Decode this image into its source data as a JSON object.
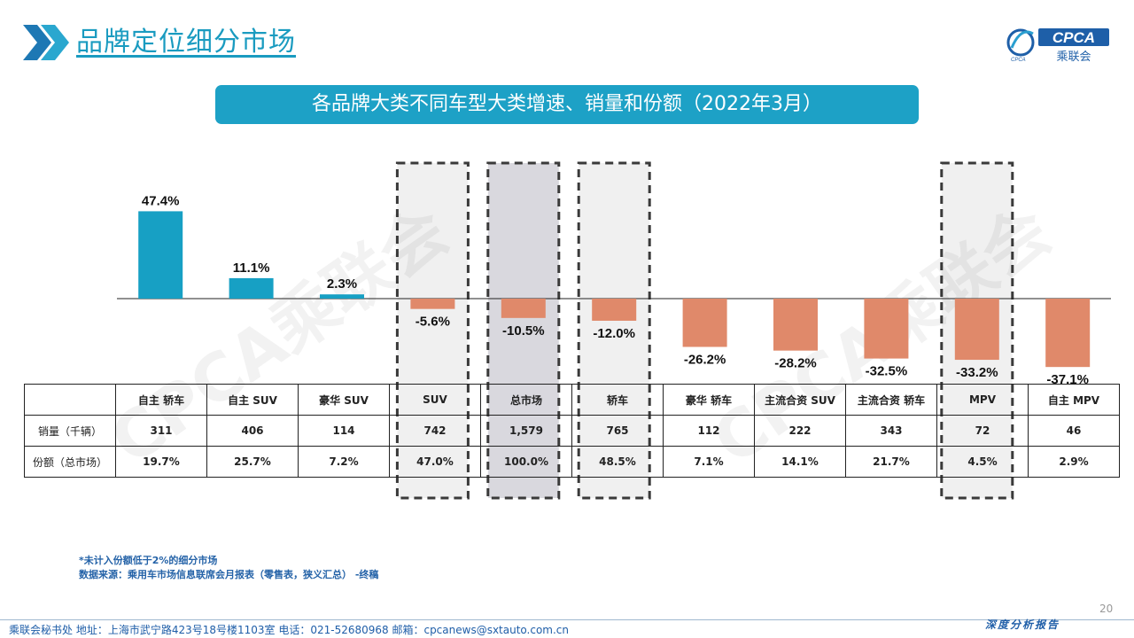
{
  "header": {
    "title": "品牌定位细分市场",
    "logo_text": "CPCA",
    "logo_subtext": "乘联会",
    "logo_mark_text": "CPCA"
  },
  "subtitle": "各品牌大类不同车型大类增速、销量和份额（2022年3月）",
  "chart_data": {
    "type": "bar",
    "categories": [
      "自主 轿车",
      "自主 SUV",
      "豪华 SUV",
      "SUV",
      "总市场",
      "轿车",
      "豪华 轿车",
      "主流合资 SUV",
      "主流合资 轿车",
      "MPV",
      "自主 MPV"
    ],
    "values": [
      47.4,
      11.1,
      2.3,
      -5.6,
      -10.5,
      -12.0,
      -26.2,
      -28.2,
      -32.5,
      -33.2,
      -37.1
    ],
    "value_labels": [
      "47.4%",
      "11.1%",
      "2.3%",
      "-5.6%",
      "-10.5%",
      "-12.0%",
      "-26.2%",
      "-28.2%",
      "-32.5%",
      "-33.2%",
      "-37.1%"
    ],
    "highlighted_categories": [
      "SUV",
      "总市场",
      "轿车",
      "MPV"
    ],
    "colors": {
      "positive": "#17a0c4",
      "negative": "#e0896a",
      "highlight_fill": "#f0f0f0",
      "highlight_fill_dark": "#d9d8de",
      "highlight_border": "#3a3a3a"
    },
    "watermark": "CPCA乘联会"
  },
  "table": {
    "row_labels": [
      "销量（千辆）",
      "份额（总市场）"
    ],
    "sales": [
      "311",
      "406",
      "114",
      "742",
      "1,579",
      "765",
      "112",
      "222",
      "343",
      "72",
      "46"
    ],
    "share": [
      "19.7%",
      "25.7%",
      "7.2%",
      "47.0%",
      "100.0%",
      "48.5%",
      "7.1%",
      "14.1%",
      "21.7%",
      "4.5%",
      "2.9%"
    ]
  },
  "notes": {
    "line1": "*未计入份额低于2%的细分市场",
    "line2": "数据来源：乘用车市场信息联席会月报表（零售表，狭义汇总）   -终稿"
  },
  "footer": {
    "text": "乘联会秘书处    地址：上海市武宁路423号18号楼1103室    电话：021-52680968    邮箱：cpcanews@sxtauto.com.cn",
    "right": "深度分析报告",
    "page_number": "20"
  }
}
